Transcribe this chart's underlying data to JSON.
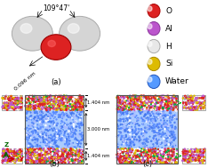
{
  "legend_items": [
    {
      "label": "O",
      "color": "#dd2222",
      "edgecolor": "#aa0000"
    },
    {
      "label": "Al",
      "color": "#bb55cc",
      "edgecolor": "#883399"
    },
    {
      "label": "H",
      "color": "#e8e8e8",
      "edgecolor": "#aaaaaa"
    },
    {
      "label": "Si",
      "color": "#ddbb00",
      "edgecolor": "#aa8800"
    },
    {
      "label": "Water",
      "color": "#5599ff",
      "edgecolor": "#2255bb"
    }
  ],
  "water_angle": "109°47'",
  "water_bond": "0.096 nm",
  "dim_top": "1.404 nm",
  "dim_mid": "3.000 nm",
  "dim_bot": "1.404 nm",
  "label_a": "(a)",
  "label_b": "(b)",
  "label_c": "(c)",
  "bg_color": "#ffffff"
}
